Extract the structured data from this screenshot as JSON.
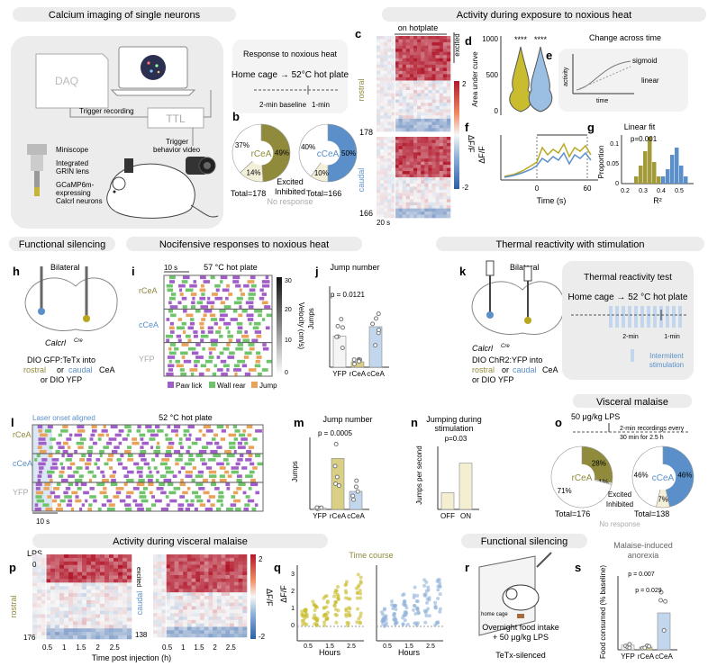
{
  "sections": {
    "top_left": "Calcium imaging of single neurons",
    "top_right": "Activity during exposure to noxious heat",
    "mid_left_1": "Functional silencing",
    "mid_left_2": "Nocifensive responses to noxious heat",
    "mid_right": "Thermal reactivity with stimulation",
    "visceral": "Visceral malaise",
    "bottom_left": "Activity during visceral malaise",
    "bottom_right": "Functional silencing"
  },
  "panel_labels": [
    "a",
    "b",
    "c",
    "d",
    "e",
    "f",
    "g",
    "h",
    "i",
    "j",
    "k",
    "l",
    "m",
    "n",
    "o",
    "p",
    "q",
    "r",
    "s"
  ],
  "panel_a": {
    "daq": "DAQ",
    "ttl": "TTL",
    "trigger_recording": "Trigger recording",
    "trigger_video_1": "Trigger",
    "trigger_video_2": "behavior video",
    "miniscope": "Miniscope",
    "grin_1": "Integrated",
    "grin_2": "GRIN lens",
    "gcamp_1": "GCaMP6m-",
    "gcamp_2": "expressing",
    "gcamp_3": "Calcrl neurons",
    "response_title": "Response to noxious heat",
    "protocol": "Home cage → 52°C hot plate",
    "baseline": "2-min baseline",
    "test": "1-min"
  },
  "panel_b": {
    "rcea": {
      "label": "rCeA",
      "total": "Total=178",
      "excited": 49,
      "inhibited": 14,
      "none": 37,
      "excited_label": "49%",
      "inhibited_label": "14%",
      "none_label": "37%"
    },
    "ccea": {
      "label": "cCeA",
      "total": "Total=166",
      "excited": 50,
      "inhibited": 10,
      "none": 40,
      "excited_label": "50%",
      "inhibited_label": "10%",
      "none_label": "40%"
    },
    "legend": [
      "Excited",
      "Inhibited",
      "No response"
    ],
    "colors": {
      "rcea": "#8f8a3c",
      "ccea": "#5b8fc9",
      "inhibited": "#f2eed6",
      "none": "#ffffff"
    }
  },
  "panel_c": {
    "title": "on hotplate",
    "rostral": "rostral",
    "caudal": "caudal",
    "n_rostral": "178",
    "n_caudal": "166",
    "scale": "20 s",
    "excited": "excited",
    "cbar_label": "ΔF/F",
    "cbar_max": "2",
    "cbar_min": "-2"
  },
  "panel_d": {
    "ylabel": "Area under curve",
    "ticks": [
      "1000",
      "500",
      "0"
    ],
    "sig": [
      "****",
      "****"
    ]
  },
  "panel_e": {
    "title": "Change across time",
    "sigmoid": "sigmoid",
    "linear": "linear",
    "activity": "activity",
    "time": "time"
  },
  "panel_f": {
    "ylabel": "ΔF/F",
    "xlabel": "Time (s)",
    "ticks": [
      "0",
      "60"
    ]
  },
  "panel_g": {
    "title": "Linear fit",
    "p": "p=0.001",
    "ylabel": "Proportion",
    "xlabel": "R²",
    "yticks": [
      "0.1",
      "0.05",
      "0"
    ],
    "xticks": [
      "0.2",
      "0.3",
      "0.4",
      "0.5"
    ]
  },
  "panel_h": {
    "bilateral": "Bilateral",
    "mouse": "Calcrl",
    "mouse_sup": "Cre",
    "line1": "DIO GFP:TeTx into",
    "rostral": "rostral",
    "or": "or",
    "caudal": "caudal",
    "cea": "CeA",
    "line3": "or DIO YFP"
  },
  "panel_i": {
    "scale": "10 s",
    "title": "57 °C hot plate",
    "rows": [
      "rCeA",
      "cCeA",
      "YFP"
    ],
    "cbar_label": "Velocity (cm/s)",
    "cbar_ticks": [
      "30",
      "20",
      "10",
      "0"
    ],
    "legend": [
      "Paw lick",
      "Wall rear",
      "Jump"
    ],
    "legend_colors": [
      "#a25ec8",
      "#6fc46b",
      "#e9a25a"
    ]
  },
  "panel_j": {
    "title": "Jump number",
    "p": "p = 0.0121",
    "ylabel": "Jumps",
    "yticks": [
      "6",
      "4",
      "2",
      "0"
    ],
    "groups": [
      "YFP",
      "rCeA",
      "cCeA"
    ]
  },
  "panel_k": {
    "bilateral": "Bilateral",
    "mouse": "Calcrl",
    "mouse_sup": "Cre",
    "line1": "DIO ChR2:YFP into",
    "rostral": "rostral",
    "or": "or",
    "caudal": "caudal",
    "cea": "CeA",
    "line3": "or DIO YFP",
    "box_title": "Thermal reactivity test",
    "protocol": "Home cage  →  52 °C hot plate",
    "t1": "2-min",
    "t2": "1-min",
    "stim_1": "Intermitent",
    "stim_2": "stimulation"
  },
  "panel_l": {
    "aligned": "Laser onset aligned",
    "title": "52 °C hot plate",
    "rows": [
      "rCeA",
      "cCeA",
      "YFP"
    ],
    "scale": "10 s"
  },
  "panel_m": {
    "title": "Jump number",
    "p": "p = 0.0005",
    "ylabel": "Jumps",
    "yticks": [
      "10",
      "5",
      "0"
    ],
    "groups": [
      "YFP",
      "rCeA",
      "cCeA"
    ]
  },
  "panel_n": {
    "title_1": "Jumping during",
    "title_2": "stimulation",
    "p": "p=0.03",
    "ylabel": "Jumps per second",
    "yticks": [
      "0.4",
      "0.2",
      "0"
    ],
    "groups": [
      "OFF",
      "ON"
    ]
  },
  "panel_o": {
    "dose": "50 μg/kg LPS",
    "protocol_1": "2-min recordings every",
    "protocol_2": "30 min for 2.5 h",
    "rcea": {
      "label": "rCeA",
      "total": "Total=176",
      "excited": 28,
      "inhibited": 1,
      "none": 71,
      "excited_label": "28%",
      "inhibited_label": "1%",
      "none_label": "71%"
    },
    "ccea": {
      "label": "cCeA",
      "total": "Total=138",
      "excited": 46,
      "inhibited": 7,
      "none": 46,
      "excited_label": "46%",
      "inhibited_label": "7%",
      "none_label": "46%"
    },
    "legend": [
      "Excited",
      "Inhibited",
      "No response"
    ]
  },
  "panel_p": {
    "lps": "LPS",
    "rostral": "rostral",
    "caudal": "caudal",
    "n_rostral": "176",
    "n_caudal": "138",
    "zero": "0",
    "xticks": [
      "0.5",
      "1",
      "1.5",
      "2",
      "2.5"
    ],
    "xlabel": "Time post injection (h)",
    "excited": "excited",
    "cbar_label": "ΔF/F",
    "cbar_max": "2",
    "cbar_min": "-2"
  },
  "panel_q": {
    "title": "Time course",
    "ylabel": "ΔF/F",
    "yticks": [
      "3",
      "2",
      "1",
      "0"
    ],
    "xticks": [
      "0.5",
      "1.5",
      "2.5"
    ],
    "xlabel": "Hours"
  },
  "panel_r": {
    "home_cage": "home cage",
    "line1": "Overnight food intake",
    "line2": "+ 50 μg/kg LPS",
    "line3": "TeTx-silenced"
  },
  "panel_s": {
    "title_1": "Malaise-induced",
    "title_2": "anorexia",
    "p1": "p = 0.007",
    "p2": "p = 0.029",
    "ylabel": "Food consumed (% baseline)",
    "groups": [
      "YFP",
      "rCeA",
      "cCeA"
    ]
  }
}
